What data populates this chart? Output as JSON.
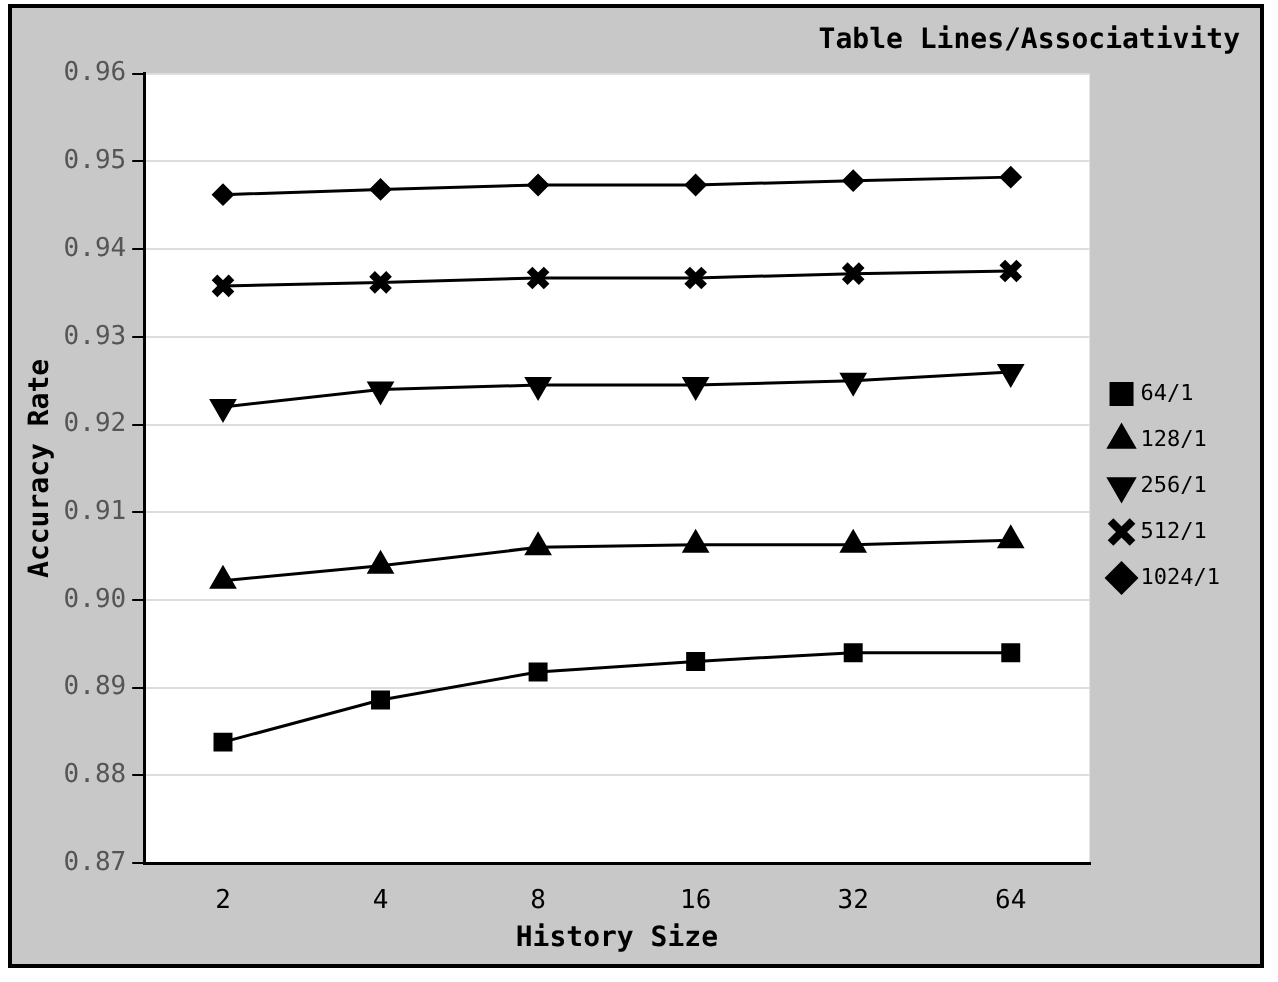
{
  "chart_data": {
    "type": "line",
    "title": "Table Lines/Associativity",
    "xlabel": "History Size",
    "ylabel": "Accuracy Rate",
    "categories": [
      "2",
      "4",
      "8",
      "16",
      "32",
      "64"
    ],
    "series": [
      {
        "name": "64/1",
        "color": "#000000",
        "marker": "square",
        "values": [
          0.8838,
          0.8886,
          0.8918,
          0.893,
          0.894,
          0.894
        ]
      },
      {
        "name": "128/1",
        "color": "#000000",
        "marker": "triangle",
        "values": [
          0.9022,
          0.9039,
          0.906,
          0.9063,
          0.9063,
          0.9068
        ]
      },
      {
        "name": "256/1",
        "color": "#000000",
        "marker": "triangle-down",
        "values": [
          0.922,
          0.924,
          0.9245,
          0.9245,
          0.925,
          0.926
        ]
      },
      {
        "name": "512/1",
        "color": "#000000",
        "marker": "cross",
        "values": [
          0.9358,
          0.9362,
          0.9367,
          0.9367,
          0.9372,
          0.9375
        ]
      },
      {
        "name": "1024/1",
        "color": "#000000",
        "marker": "diamond",
        "values": [
          0.9462,
          0.9468,
          0.9473,
          0.9473,
          0.9478,
          0.9482
        ]
      }
    ],
    "ylim": [
      0.87,
      0.96
    ],
    "yticks": [
      0.87,
      0.88,
      0.89,
      {
        "value": 0.9,
        "label": "0.90"
      },
      0.91,
      0.92,
      0.93,
      0.94,
      0.95,
      0.96
    ],
    "grid": "y",
    "legend": "right"
  }
}
